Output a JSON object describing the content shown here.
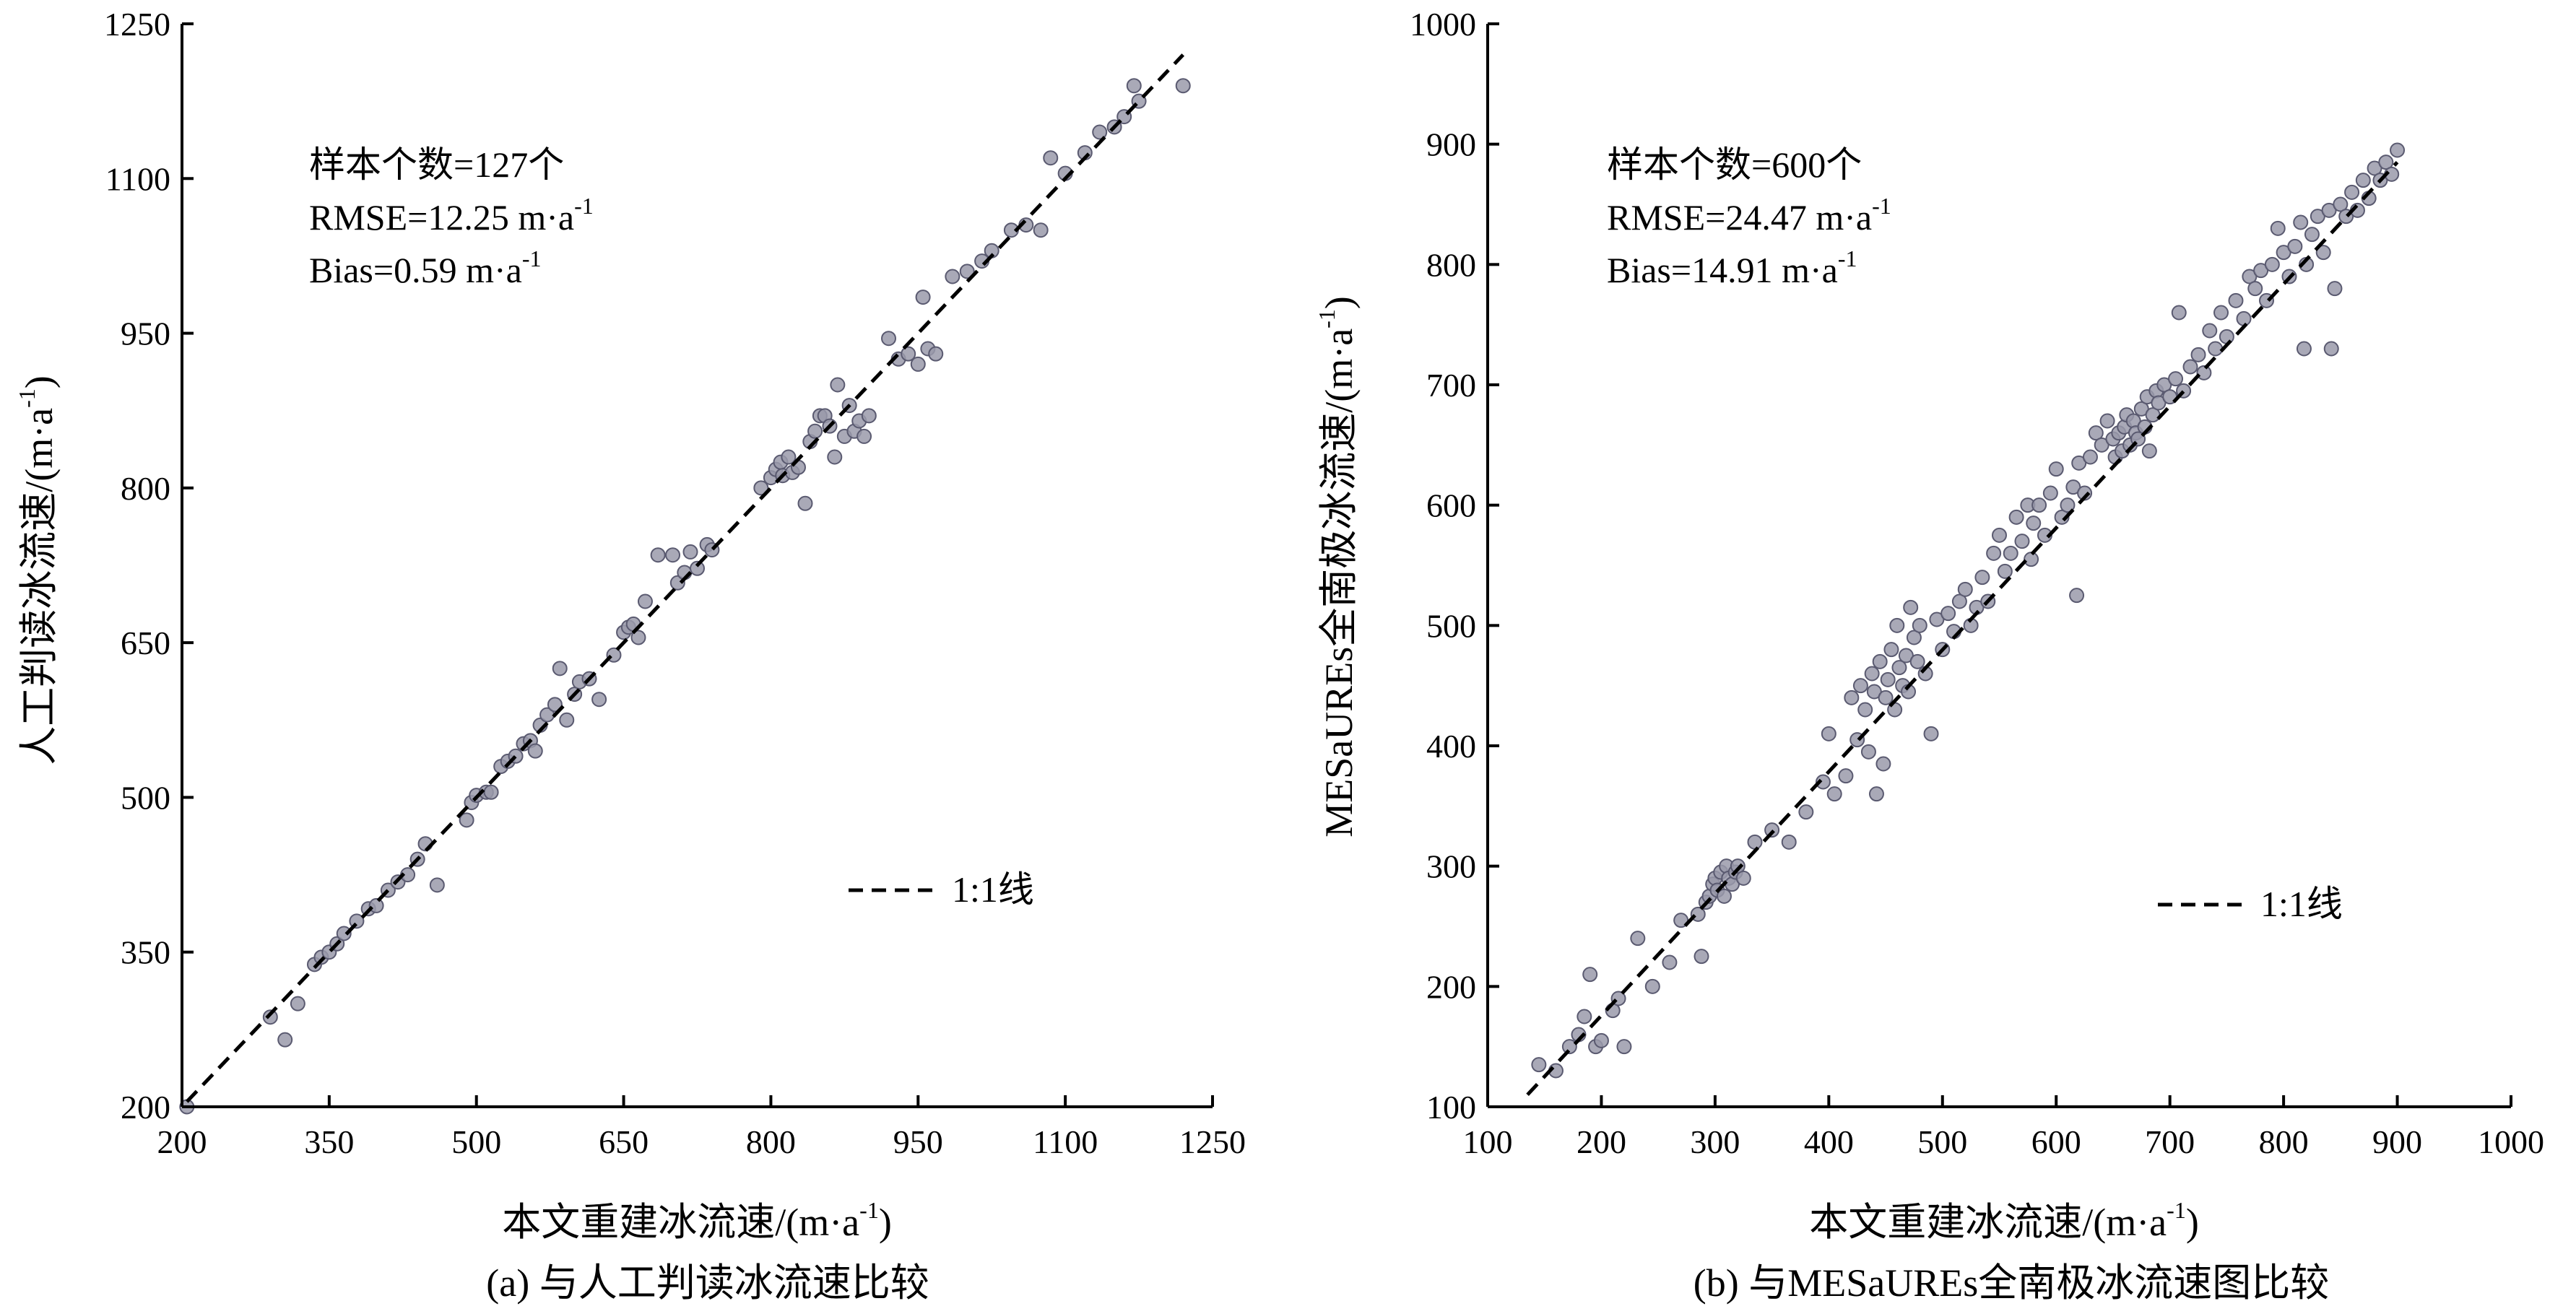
{
  "chart_data": [
    {
      "type": "scatter",
      "caption": "(a) 与人工判读冰流速比较",
      "xlabel": "本文重建冰流速/(m·a",
      "xlabel_sup": "-1",
      "xlabel_tail": ")",
      "ylabel": "人工判读冰流速/(m·a",
      "ylabel_sup": "-1",
      "ylabel_tail": ")",
      "xlim": [
        200,
        1250
      ],
      "ylim": [
        200,
        1250
      ],
      "xticks": [
        200,
        350,
        500,
        650,
        800,
        950,
        1100,
        1250
      ],
      "yticks": [
        200,
        350,
        500,
        650,
        800,
        950,
        1100,
        1250
      ],
      "stats": {
        "samples": "样本个数=127个",
        "rmse": "RMSE=12.25 m·a",
        "rmse_sup": "-1",
        "bias": "Bias=0.59 m·a",
        "bias_sup": "-1"
      },
      "legend": "1:1线",
      "reference_line": [
        [
          205,
          205
        ],
        [
          1220,
          1220
        ]
      ],
      "points": [
        [
          205,
          200
        ],
        [
          290,
          287
        ],
        [
          305,
          265
        ],
        [
          318,
          300
        ],
        [
          335,
          338
        ],
        [
          342,
          345
        ],
        [
          350,
          350
        ],
        [
          358,
          358
        ],
        [
          365,
          368
        ],
        [
          378,
          380
        ],
        [
          390,
          392
        ],
        [
          398,
          395
        ],
        [
          410,
          410
        ],
        [
          420,
          418
        ],
        [
          430,
          425
        ],
        [
          440,
          440
        ],
        [
          448,
          455
        ],
        [
          460,
          415
        ],
        [
          490,
          478
        ],
        [
          495,
          495
        ],
        [
          500,
          502
        ],
        [
          510,
          505
        ],
        [
          515,
          505
        ],
        [
          525,
          530
        ],
        [
          532,
          535
        ],
        [
          540,
          540
        ],
        [
          548,
          552
        ],
        [
          555,
          555
        ],
        [
          560,
          545
        ],
        [
          565,
          570
        ],
        [
          572,
          580
        ],
        [
          580,
          590
        ],
        [
          585,
          625
        ],
        [
          592,
          575
        ],
        [
          600,
          600
        ],
        [
          605,
          612
        ],
        [
          615,
          615
        ],
        [
          625,
          595
        ],
        [
          640,
          638
        ],
        [
          650,
          660
        ],
        [
          655,
          665
        ],
        [
          660,
          668
        ],
        [
          665,
          655
        ],
        [
          672,
          690
        ],
        [
          685,
          735
        ],
        [
          700,
          735
        ],
        [
          705,
          708
        ],
        [
          712,
          718
        ],
        [
          718,
          738
        ],
        [
          725,
          722
        ],
        [
          735,
          745
        ],
        [
          740,
          740
        ],
        [
          790,
          800
        ],
        [
          800,
          810
        ],
        [
          805,
          818
        ],
        [
          810,
          825
        ],
        [
          812,
          812
        ],
        [
          818,
          830
        ],
        [
          822,
          815
        ],
        [
          828,
          820
        ],
        [
          835,
          785
        ],
        [
          840,
          845
        ],
        [
          845,
          855
        ],
        [
          850,
          870
        ],
        [
          855,
          870
        ],
        [
          860,
          860
        ],
        [
          865,
          830
        ],
        [
          868,
          900
        ],
        [
          875,
          850
        ],
        [
          880,
          880
        ],
        [
          885,
          855
        ],
        [
          890,
          865
        ],
        [
          895,
          850
        ],
        [
          900,
          870
        ],
        [
          920,
          945
        ],
        [
          930,
          925
        ],
        [
          940,
          930
        ],
        [
          950,
          920
        ],
        [
          955,
          985
        ],
        [
          960,
          935
        ],
        [
          968,
          930
        ],
        [
          985,
          1005
        ],
        [
          1000,
          1010
        ],
        [
          1015,
          1020
        ],
        [
          1025,
          1030
        ],
        [
          1045,
          1050
        ],
        [
          1060,
          1055
        ],
        [
          1075,
          1050
        ],
        [
          1085,
          1120
        ],
        [
          1100,
          1105
        ],
        [
          1120,
          1125
        ],
        [
          1135,
          1145
        ],
        [
          1150,
          1150
        ],
        [
          1160,
          1160
        ],
        [
          1170,
          1190
        ],
        [
          1175,
          1175
        ],
        [
          1220,
          1190
        ]
      ]
    },
    {
      "type": "scatter",
      "caption": "(b) 与MESaUREs全南极冰流速图比较",
      "xlabel": "本文重建冰流速/(m·a",
      "xlabel_sup": "-1",
      "xlabel_tail": ")",
      "ylabel": "MESaUREs全南极冰流速/(m·a",
      "ylabel_sup": "-1",
      "ylabel_tail": ")",
      "xlim": [
        100,
        1000
      ],
      "ylim": [
        100,
        1000
      ],
      "xticks": [
        100,
        200,
        300,
        400,
        500,
        600,
        700,
        800,
        900,
        1000
      ],
      "yticks": [
        100,
        200,
        300,
        400,
        500,
        600,
        700,
        800,
        900,
        1000
      ],
      "stats": {
        "samples": "样本个数=600个",
        "rmse": "RMSE=24.47 m·a",
        "rmse_sup": "-1",
        "bias": "Bias=14.91 m·a",
        "bias_sup": "-1"
      },
      "legend": "1:1线",
      "reference_line": [
        [
          135,
          110
        ],
        [
          900,
          885
        ]
      ],
      "points": [
        [
          145,
          135
        ],
        [
          160,
          130
        ],
        [
          172,
          150
        ],
        [
          180,
          160
        ],
        [
          185,
          175
        ],
        [
          190,
          210
        ],
        [
          195,
          150
        ],
        [
          200,
          155
        ],
        [
          210,
          180
        ],
        [
          215,
          190
        ],
        [
          220,
          150
        ],
        [
          232,
          240
        ],
        [
          245,
          200
        ],
        [
          260,
          220
        ],
        [
          270,
          255
        ],
        [
          285,
          260
        ],
        [
          288,
          225
        ],
        [
          292,
          270
        ],
        [
          295,
          275
        ],
        [
          298,
          285
        ],
        [
          300,
          290
        ],
        [
          302,
          280
        ],
        [
          305,
          295
        ],
        [
          308,
          275
        ],
        [
          310,
          300
        ],
        [
          312,
          290
        ],
        [
          315,
          285
        ],
        [
          318,
          295
        ],
        [
          320,
          300
        ],
        [
          325,
          290
        ],
        [
          335,
          320
        ],
        [
          350,
          330
        ],
        [
          365,
          320
        ],
        [
          380,
          345
        ],
        [
          395,
          370
        ],
        [
          400,
          410
        ],
        [
          405,
          360
        ],
        [
          415,
          375
        ],
        [
          420,
          440
        ],
        [
          425,
          405
        ],
        [
          428,
          450
        ],
        [
          432,
          430
        ],
        [
          435,
          395
        ],
        [
          438,
          460
        ],
        [
          440,
          445
        ],
        [
          442,
          360
        ],
        [
          445,
          470
        ],
        [
          448,
          385
        ],
        [
          450,
          440
        ],
        [
          452,
          455
        ],
        [
          455,
          480
        ],
        [
          458,
          430
        ],
        [
          460,
          500
        ],
        [
          462,
          465
        ],
        [
          465,
          450
        ],
        [
          468,
          475
        ],
        [
          470,
          445
        ],
        [
          472,
          515
        ],
        [
          475,
          490
        ],
        [
          478,
          470
        ],
        [
          480,
          500
        ],
        [
          485,
          460
        ],
        [
          490,
          410
        ],
        [
          495,
          505
        ],
        [
          500,
          480
        ],
        [
          505,
          510
        ],
        [
          510,
          495
        ],
        [
          515,
          520
        ],
        [
          520,
          530
        ],
        [
          525,
          500
        ],
        [
          530,
          515
        ],
        [
          535,
          540
        ],
        [
          540,
          520
        ],
        [
          545,
          560
        ],
        [
          550,
          575
        ],
        [
          555,
          545
        ],
        [
          560,
          560
        ],
        [
          565,
          590
        ],
        [
          570,
          570
        ],
        [
          575,
          600
        ],
        [
          578,
          555
        ],
        [
          580,
          585
        ],
        [
          585,
          600
        ],
        [
          590,
          575
        ],
        [
          595,
          610
        ],
        [
          600,
          630
        ],
        [
          605,
          590
        ],
        [
          610,
          600
        ],
        [
          615,
          615
        ],
        [
          618,
          525
        ],
        [
          620,
          635
        ],
        [
          625,
          610
        ],
        [
          630,
          640
        ],
        [
          635,
          660
        ],
        [
          640,
          650
        ],
        [
          645,
          670
        ],
        [
          650,
          655
        ],
        [
          652,
          640
        ],
        [
          655,
          660
        ],
        [
          658,
          645
        ],
        [
          660,
          665
        ],
        [
          662,
          675
        ],
        [
          665,
          650
        ],
        [
          668,
          670
        ],
        [
          670,
          660
        ],
        [
          672,
          655
        ],
        [
          675,
          680
        ],
        [
          678,
          665
        ],
        [
          680,
          690
        ],
        [
          682,
          645
        ],
        [
          685,
          675
        ],
        [
          688,
          695
        ],
        [
          690,
          685
        ],
        [
          695,
          700
        ],
        [
          700,
          690
        ],
        [
          705,
          705
        ],
        [
          708,
          760
        ],
        [
          712,
          695
        ],
        [
          718,
          715
        ],
        [
          725,
          725
        ],
        [
          730,
          710
        ],
        [
          735,
          745
        ],
        [
          740,
          730
        ],
        [
          745,
          760
        ],
        [
          750,
          740
        ],
        [
          758,
          770
        ],
        [
          765,
          755
        ],
        [
          770,
          790
        ],
        [
          775,
          780
        ],
        [
          780,
          795
        ],
        [
          785,
          770
        ],
        [
          790,
          800
        ],
        [
          795,
          830
        ],
        [
          800,
          810
        ],
        [
          805,
          790
        ],
        [
          810,
          815
        ],
        [
          815,
          835
        ],
        [
          818,
          730
        ],
        [
          820,
          800
        ],
        [
          825,
          825
        ],
        [
          830,
          840
        ],
        [
          835,
          810
        ],
        [
          840,
          845
        ],
        [
          842,
          730
        ],
        [
          845,
          780
        ],
        [
          850,
          850
        ],
        [
          855,
          840
        ],
        [
          860,
          860
        ],
        [
          865,
          845
        ],
        [
          870,
          870
        ],
        [
          875,
          855
        ],
        [
          880,
          880
        ],
        [
          885,
          870
        ],
        [
          890,
          885
        ],
        [
          895,
          875
        ],
        [
          900,
          895
        ]
      ]
    }
  ]
}
